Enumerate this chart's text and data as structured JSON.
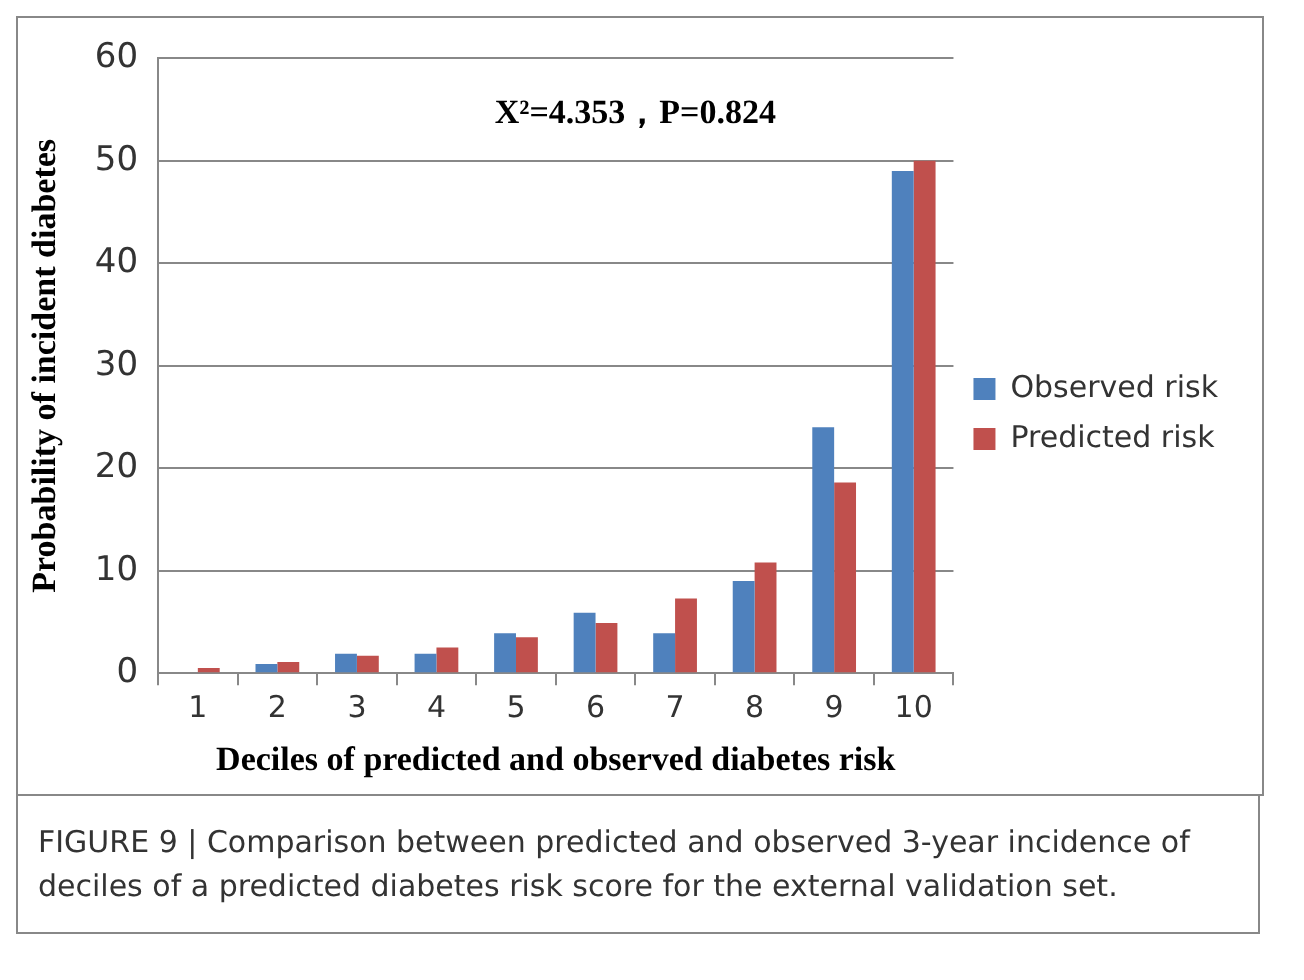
{
  "chart_data": {
    "type": "bar",
    "xlabel": "Deciles of predicted and observed diabetes risk",
    "ylabel": "Probability of incident diabetes",
    "categories": [
      "1",
      "2",
      "3",
      "4",
      "5",
      "6",
      "7",
      "8",
      "9",
      "10"
    ],
    "series": [
      {
        "name": "Observed risk",
        "color": "#4f81bd",
        "values": [
          0,
          0.9,
          1.9,
          1.9,
          3.9,
          5.9,
          3.9,
          9,
          24,
          49
        ]
      },
      {
        "name": "Predicted risk",
        "color": "#c0504d",
        "values": [
          0.5,
          1.1,
          1.7,
          2.5,
          3.5,
          4.9,
          7.3,
          10.8,
          18.6,
          50
        ]
      }
    ],
    "ylim": [
      0,
      60
    ],
    "yticks": [
      0,
      10,
      20,
      30,
      40,
      50,
      60
    ],
    "grid": "y",
    "legend": "right",
    "annotations": [
      "X²=4.353，P=0.824",
      "FIGURE 9 | Comparison between predicted and observed 3-year incidence of deciles of a predicted diabetes risk score for the external validation set."
    ]
  }
}
